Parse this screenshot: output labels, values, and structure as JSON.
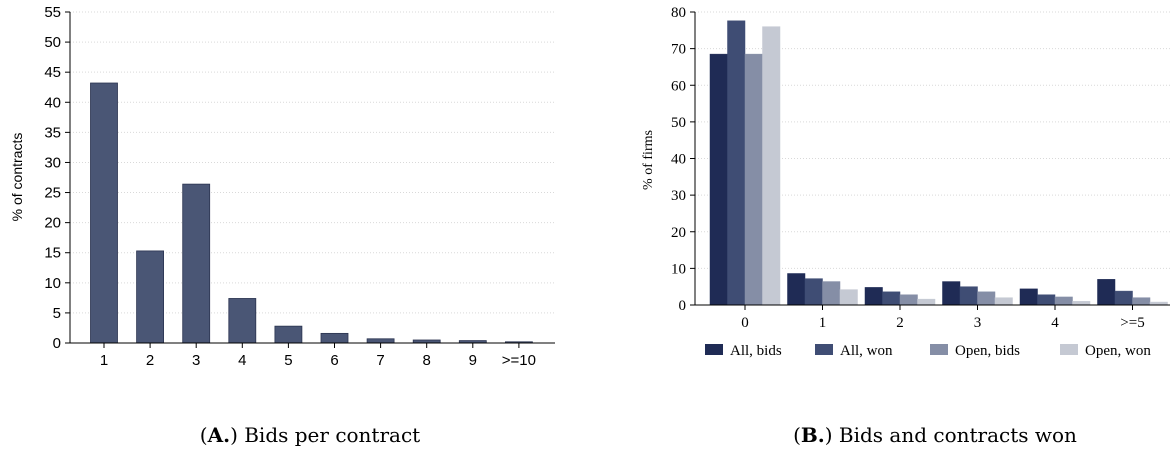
{
  "chart_data": [
    {
      "type": "bar",
      "caption_prefix": "(",
      "caption_bold": "A.",
      "caption_rest": ") Bids per contract",
      "ylabel": "% of contracts",
      "xlabel": "",
      "ylim": [
        0,
        55
      ],
      "yticks": [
        "0",
        "5",
        "10",
        "15",
        "20",
        "25",
        "30",
        "35",
        "40",
        "45",
        "50",
        "55"
      ],
      "grid": true,
      "categories": [
        "1",
        "2",
        "3",
        "4",
        "5",
        "6",
        "7",
        "8",
        "9",
        ">=10"
      ],
      "values": [
        43.2,
        15.3,
        26.4,
        7.4,
        2.8,
        1.6,
        0.7,
        0.5,
        0.4,
        0.2
      ],
      "bar_color": "#4a5675"
    },
    {
      "type": "bar",
      "caption_prefix": "(",
      "caption_bold": "B.",
      "caption_rest": ") Bids and contracts won",
      "ylabel": "% of firms",
      "xlabel": "",
      "ylim": [
        0,
        80
      ],
      "yticks": [
        "0",
        "10",
        "20",
        "30",
        "40",
        "50",
        "60",
        "70",
        "80"
      ],
      "grid": true,
      "legend_position": "bottom",
      "categories": [
        "0",
        "1",
        "2",
        "3",
        "4",
        ">=5"
      ],
      "series": [
        {
          "name": "All, bids",
          "values": [
            68.5,
            8.6,
            4.8,
            6.4,
            4.4,
            7.0
          ],
          "color": "#1f2b55"
        },
        {
          "name": "All, won",
          "values": [
            77.6,
            7.2,
            3.6,
            5.0,
            2.8,
            3.8
          ],
          "color": "#3f4d74"
        },
        {
          "name": "Open, bids",
          "values": [
            68.5,
            6.4,
            2.8,
            3.6,
            2.2,
            2.0
          ],
          "color": "#858ea6"
        },
        {
          "name": "Open, won",
          "values": [
            76.0,
            4.2,
            1.6,
            2.0,
            1.0,
            0.8
          ],
          "color": "#c5c9d3"
        }
      ]
    }
  ]
}
